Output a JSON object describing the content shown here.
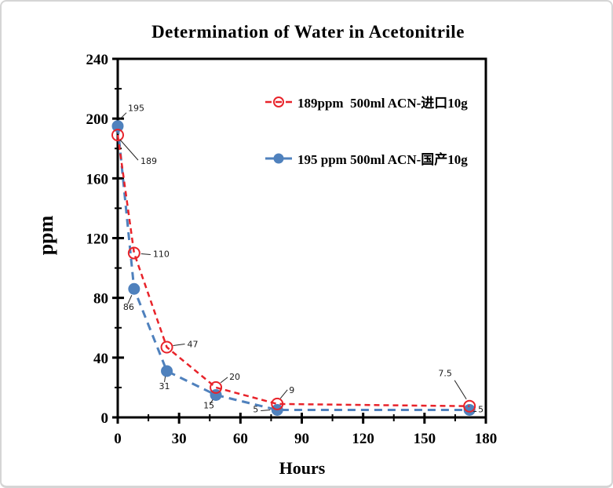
{
  "chart_data": {
    "type": "line",
    "title": "Determination of Water in Acetonitrile",
    "xlabel": "Hours",
    "ylabel": "ppm",
    "xlim": [
      0,
      180
    ],
    "ylim": [
      0,
      240
    ],
    "x_major_ticks": [
      0,
      30,
      60,
      90,
      120,
      150,
      180
    ],
    "x_minor_step": 15,
    "y_major_ticks": [
      0,
      40,
      80,
      120,
      160,
      200,
      240
    ],
    "y_minor_step": 20,
    "grid": false,
    "legend_position": "inside-top-center",
    "x": [
      0,
      8,
      24,
      48,
      78,
      172
    ],
    "series": [
      {
        "name": "189ppm  500ml ACN-进口10g",
        "color": "#e8232a",
        "marker": "open-circle",
        "marker_radius": 7,
        "line_style": "dashed",
        "dash": "7 5",
        "line_width": 2.5,
        "values": [
          189,
          110,
          47,
          20,
          9,
          7.5
        ],
        "point_labels": [
          {
            "text": "189",
            "dx": 29,
            "dy": 37,
            "anchor": "start",
            "leader": [
              3,
              6,
              26,
              32
            ]
          },
          {
            "text": "110",
            "dx": 24,
            "dy": 5,
            "anchor": "start",
            "leader": [
              9,
              1,
              21,
              2
            ]
          },
          {
            "text": "47",
            "dx": 26,
            "dy": 0,
            "anchor": "start",
            "leader": [
              8,
              -2,
              23,
              -4
            ]
          },
          {
            "text": "20",
            "dx": 17,
            "dy": -10,
            "anchor": "start",
            "leader": [
              6,
              -6,
              15,
              -13
            ]
          },
          {
            "text": "9",
            "dx": 15,
            "dy": -14,
            "anchor": "start",
            "leader": [
              4,
              -7,
              13,
              -18
            ]
          },
          {
            "text": "7.5",
            "dx": -31,
            "dy": -38,
            "anchor": "middle",
            "leader": [
              -4,
              -9,
              -19,
              -33
            ]
          }
        ]
      },
      {
        "name": "195 ppm 500ml ACN-国产10g",
        "color": "#4f81bd",
        "marker": "filled-circle",
        "marker_radius": 7,
        "line_style": "dashed",
        "dash": "10 7",
        "line_width": 3,
        "values": [
          195,
          86,
          31,
          15,
          5,
          5
        ],
        "point_labels": [
          {
            "text": "195",
            "dx": 13,
            "dy": -19,
            "anchor": "start",
            "leader": [
              2,
              -8,
              11,
              -17
            ]
          },
          {
            "text": "86",
            "dx": -14,
            "dy": 27,
            "anchor": "start",
            "leader": [
              -3,
              8,
              -8,
              19
            ]
          },
          {
            "text": "31",
            "dx": -3,
            "dy": 23,
            "anchor": "middle",
            "leader": [
              -2,
              7,
              -3,
              14
            ]
          },
          {
            "text": "15",
            "dx": -9,
            "dy": 17,
            "anchor": "middle",
            "leader": [
              -4,
              6,
              -7,
              11
            ]
          },
          {
            "text": "5",
            "dx": -24,
            "dy": 3,
            "anchor": "end",
            "leader": [
              -21,
              1,
              -9,
              0
            ]
          },
          {
            "text": "5",
            "dx": 11,
            "dy": 3,
            "anchor": "start",
            "leader": [
              5,
              2,
              9,
              2
            ]
          }
        ]
      }
    ]
  }
}
